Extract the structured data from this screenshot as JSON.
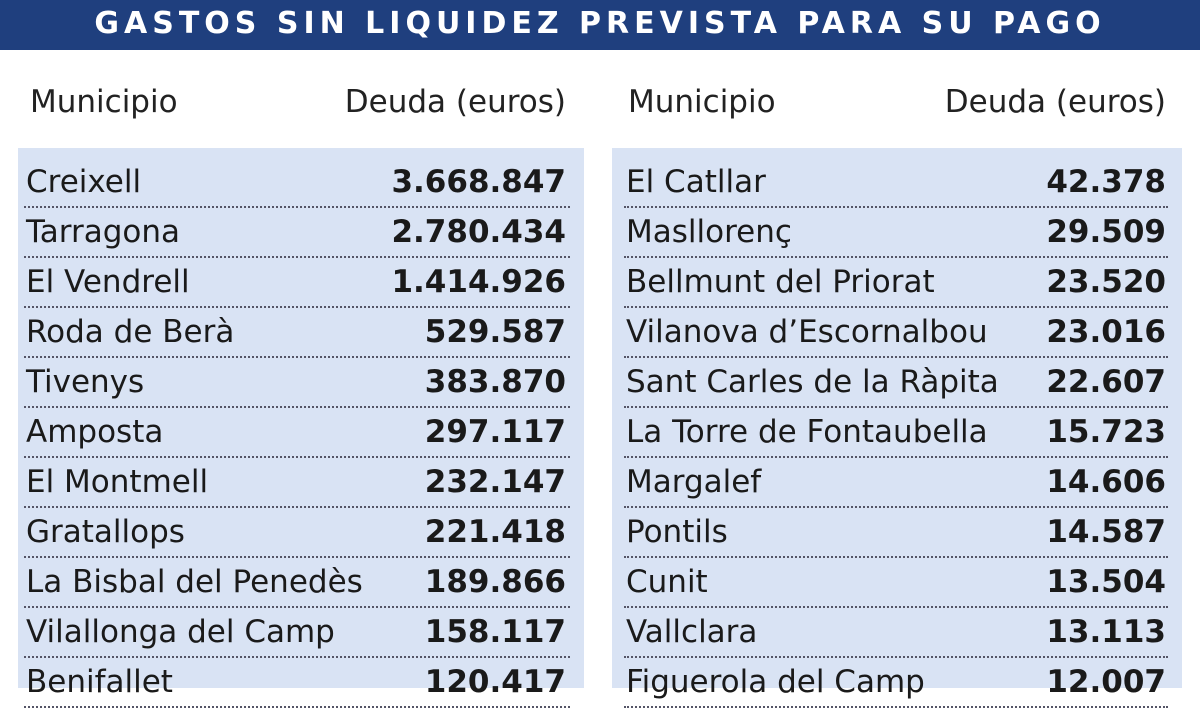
{
  "header": {
    "title": "GASTOS SIN LIQUIDEZ PREVISTA PARA SU PAGO"
  },
  "table": {
    "columns": [
      "Municipio",
      "Deuda (euros)",
      "Municipio",
      "Deuda (euros)"
    ],
    "rows": [
      [
        "Creixell",
        "3.668.847",
        "El Catllar",
        "42.378"
      ],
      [
        "Tarragona",
        "2.780.434",
        "Masllorenç",
        "29.509"
      ],
      [
        "El Vendrell",
        "1.414.926",
        "Bellmunt del Priorat",
        "23.520"
      ],
      [
        "Roda de Berà",
        "529.587",
        "Vilanova d’Escornalbou",
        "23.016"
      ],
      [
        "Tivenys",
        "383.870",
        "Sant Carles de la Ràpita",
        "22.607"
      ],
      [
        "Amposta",
        "297.117",
        "La Torre de Fontaubella",
        "15.723"
      ],
      [
        "El Montmell",
        "232.147",
        "Margalef",
        "14.606"
      ],
      [
        "Gratallops",
        "221.418",
        "Pontils",
        "14.587"
      ],
      [
        "La Bisbal del Penedès",
        "189.866",
        "Cunit",
        "13.504"
      ],
      [
        "Vilallonga del Camp",
        "158.117",
        "Vallclara",
        "13.113"
      ],
      [
        "Benifallet",
        "120.417",
        "Figuerola del Camp",
        "12.007"
      ]
    ]
  }
}
